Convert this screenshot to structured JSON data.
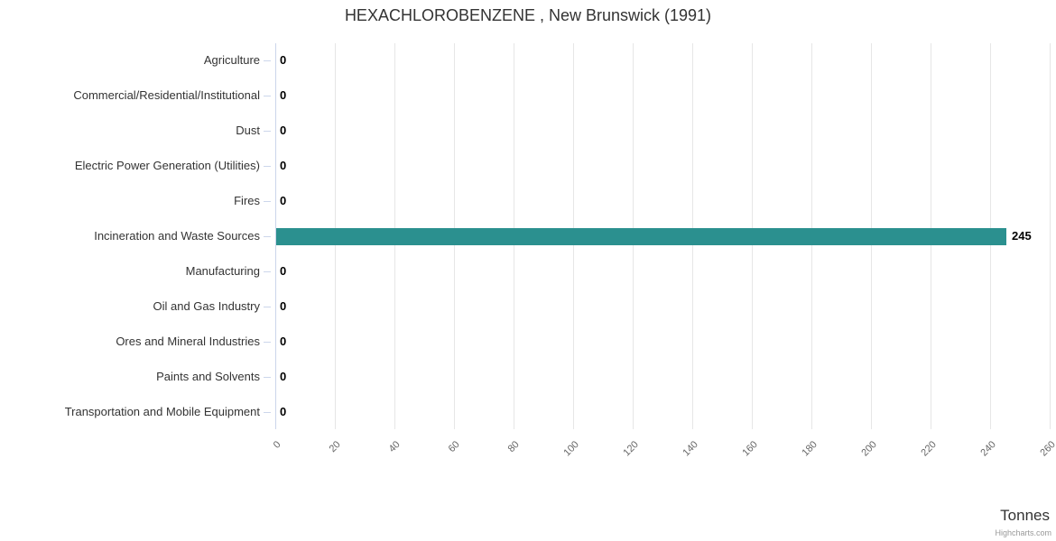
{
  "chart_data": {
    "type": "bar",
    "orientation": "horizontal",
    "title": "HEXACHLOROBENZENE , New Brunswick (1991)",
    "categories": [
      "Agriculture",
      "Commercial/Residential/Institutional",
      "Dust",
      "Electric Power Generation (Utilities)",
      "Fires",
      "Incineration and Waste Sources",
      "Manufacturing",
      "Oil and Gas Industry",
      "Ores and Mineral Industries",
      "Paints and Solvents",
      "Transportation and Mobile Equipment"
    ],
    "values": [
      0,
      0,
      0,
      0,
      0,
      245,
      0,
      0,
      0,
      0,
      0
    ],
    "data_labels": [
      "0",
      "0",
      "0",
      "0",
      "0",
      "245",
      "0",
      "0",
      "0",
      "0",
      "0"
    ],
    "xlabel": "Tonnes",
    "value_axis": {
      "min": 0,
      "max": 260,
      "tick_interval": 20,
      "ticks": [
        0,
        20,
        40,
        60,
        80,
        100,
        120,
        140,
        160,
        180,
        200,
        220,
        240,
        260
      ]
    },
    "grid": true,
    "legend": "none",
    "credit": "Highcharts.com"
  },
  "colors": {
    "bar": "#2b908f",
    "gridline": "#e6e6e6",
    "axis_line": "#ccd6eb",
    "title_text": "#333333",
    "category_text": "#333333",
    "tick_text": "#666666",
    "data_label_text": "#000000",
    "credit_text": "#999999"
  }
}
